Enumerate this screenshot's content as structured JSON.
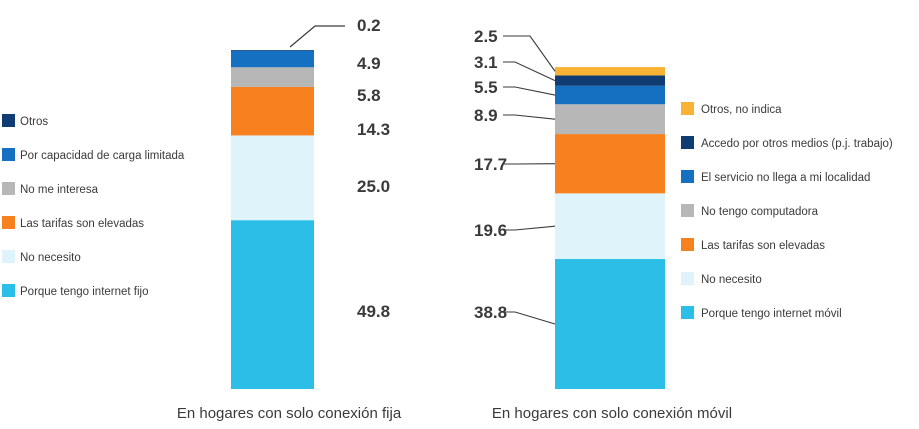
{
  "chart_data": [
    {
      "type": "bar",
      "stacked": true,
      "categories": [
        "En hogares con solo conexión fija"
      ],
      "series": [
        {
          "name": "Porque tengo internet fijo",
          "values": [
            49.8
          ],
          "color": "#2bbfe8"
        },
        {
          "name": "No necesito",
          "values": [
            25.0
          ],
          "color": "#dff3fb"
        },
        {
          "name": "Las tarifas son elevadas",
          "values": [
            14.3
          ],
          "color": "#f7801f"
        },
        {
          "name": "No me interesa",
          "values": [
            5.8
          ],
          "color": "#b7b7b7"
        },
        {
          "name": "Por capacidad de carga limitada",
          "values": [
            4.9
          ],
          "color": "#1570c1"
        },
        {
          "name": "Otros",
          "values": [
            0.2
          ],
          "color": "#0f3d73"
        }
      ],
      "value_labels": [
        "49.8",
        "25.0",
        "14.3",
        "5.8",
        "4.9",
        "0.2"
      ],
      "legend_position": "left",
      "ylim": [
        0,
        100
      ]
    },
    {
      "type": "bar",
      "stacked": true,
      "categories": [
        "En hogares con solo conexión móvil"
      ],
      "series": [
        {
          "name": "Porque tengo internet móvil",
          "values": [
            38.8
          ],
          "color": "#2bbfe8"
        },
        {
          "name": "No necesito",
          "values": [
            19.6
          ],
          "color": "#dff3fb"
        },
        {
          "name": "Las tarifas son elevadas",
          "values": [
            17.7
          ],
          "color": "#f7801f"
        },
        {
          "name": "No tengo computadora",
          "values": [
            8.9
          ],
          "color": "#b7b7b7"
        },
        {
          "name": "El servicio no llega a mi localidad",
          "values": [
            5.5
          ],
          "color": "#1570c1"
        },
        {
          "name": "Accedo por otros medios (p.j. trabajo)",
          "values": [
            3.1
          ],
          "color": "#0f3d73"
        },
        {
          "name": "Otros, no indica",
          "values": [
            2.5
          ],
          "color": "#f9b233"
        }
      ],
      "value_labels": [
        "38.8",
        "19.6",
        "17.7",
        "8.9",
        "5.5",
        "3.1",
        "2.5"
      ],
      "legend_position": "right",
      "ylim": [
        0,
        100
      ]
    }
  ]
}
